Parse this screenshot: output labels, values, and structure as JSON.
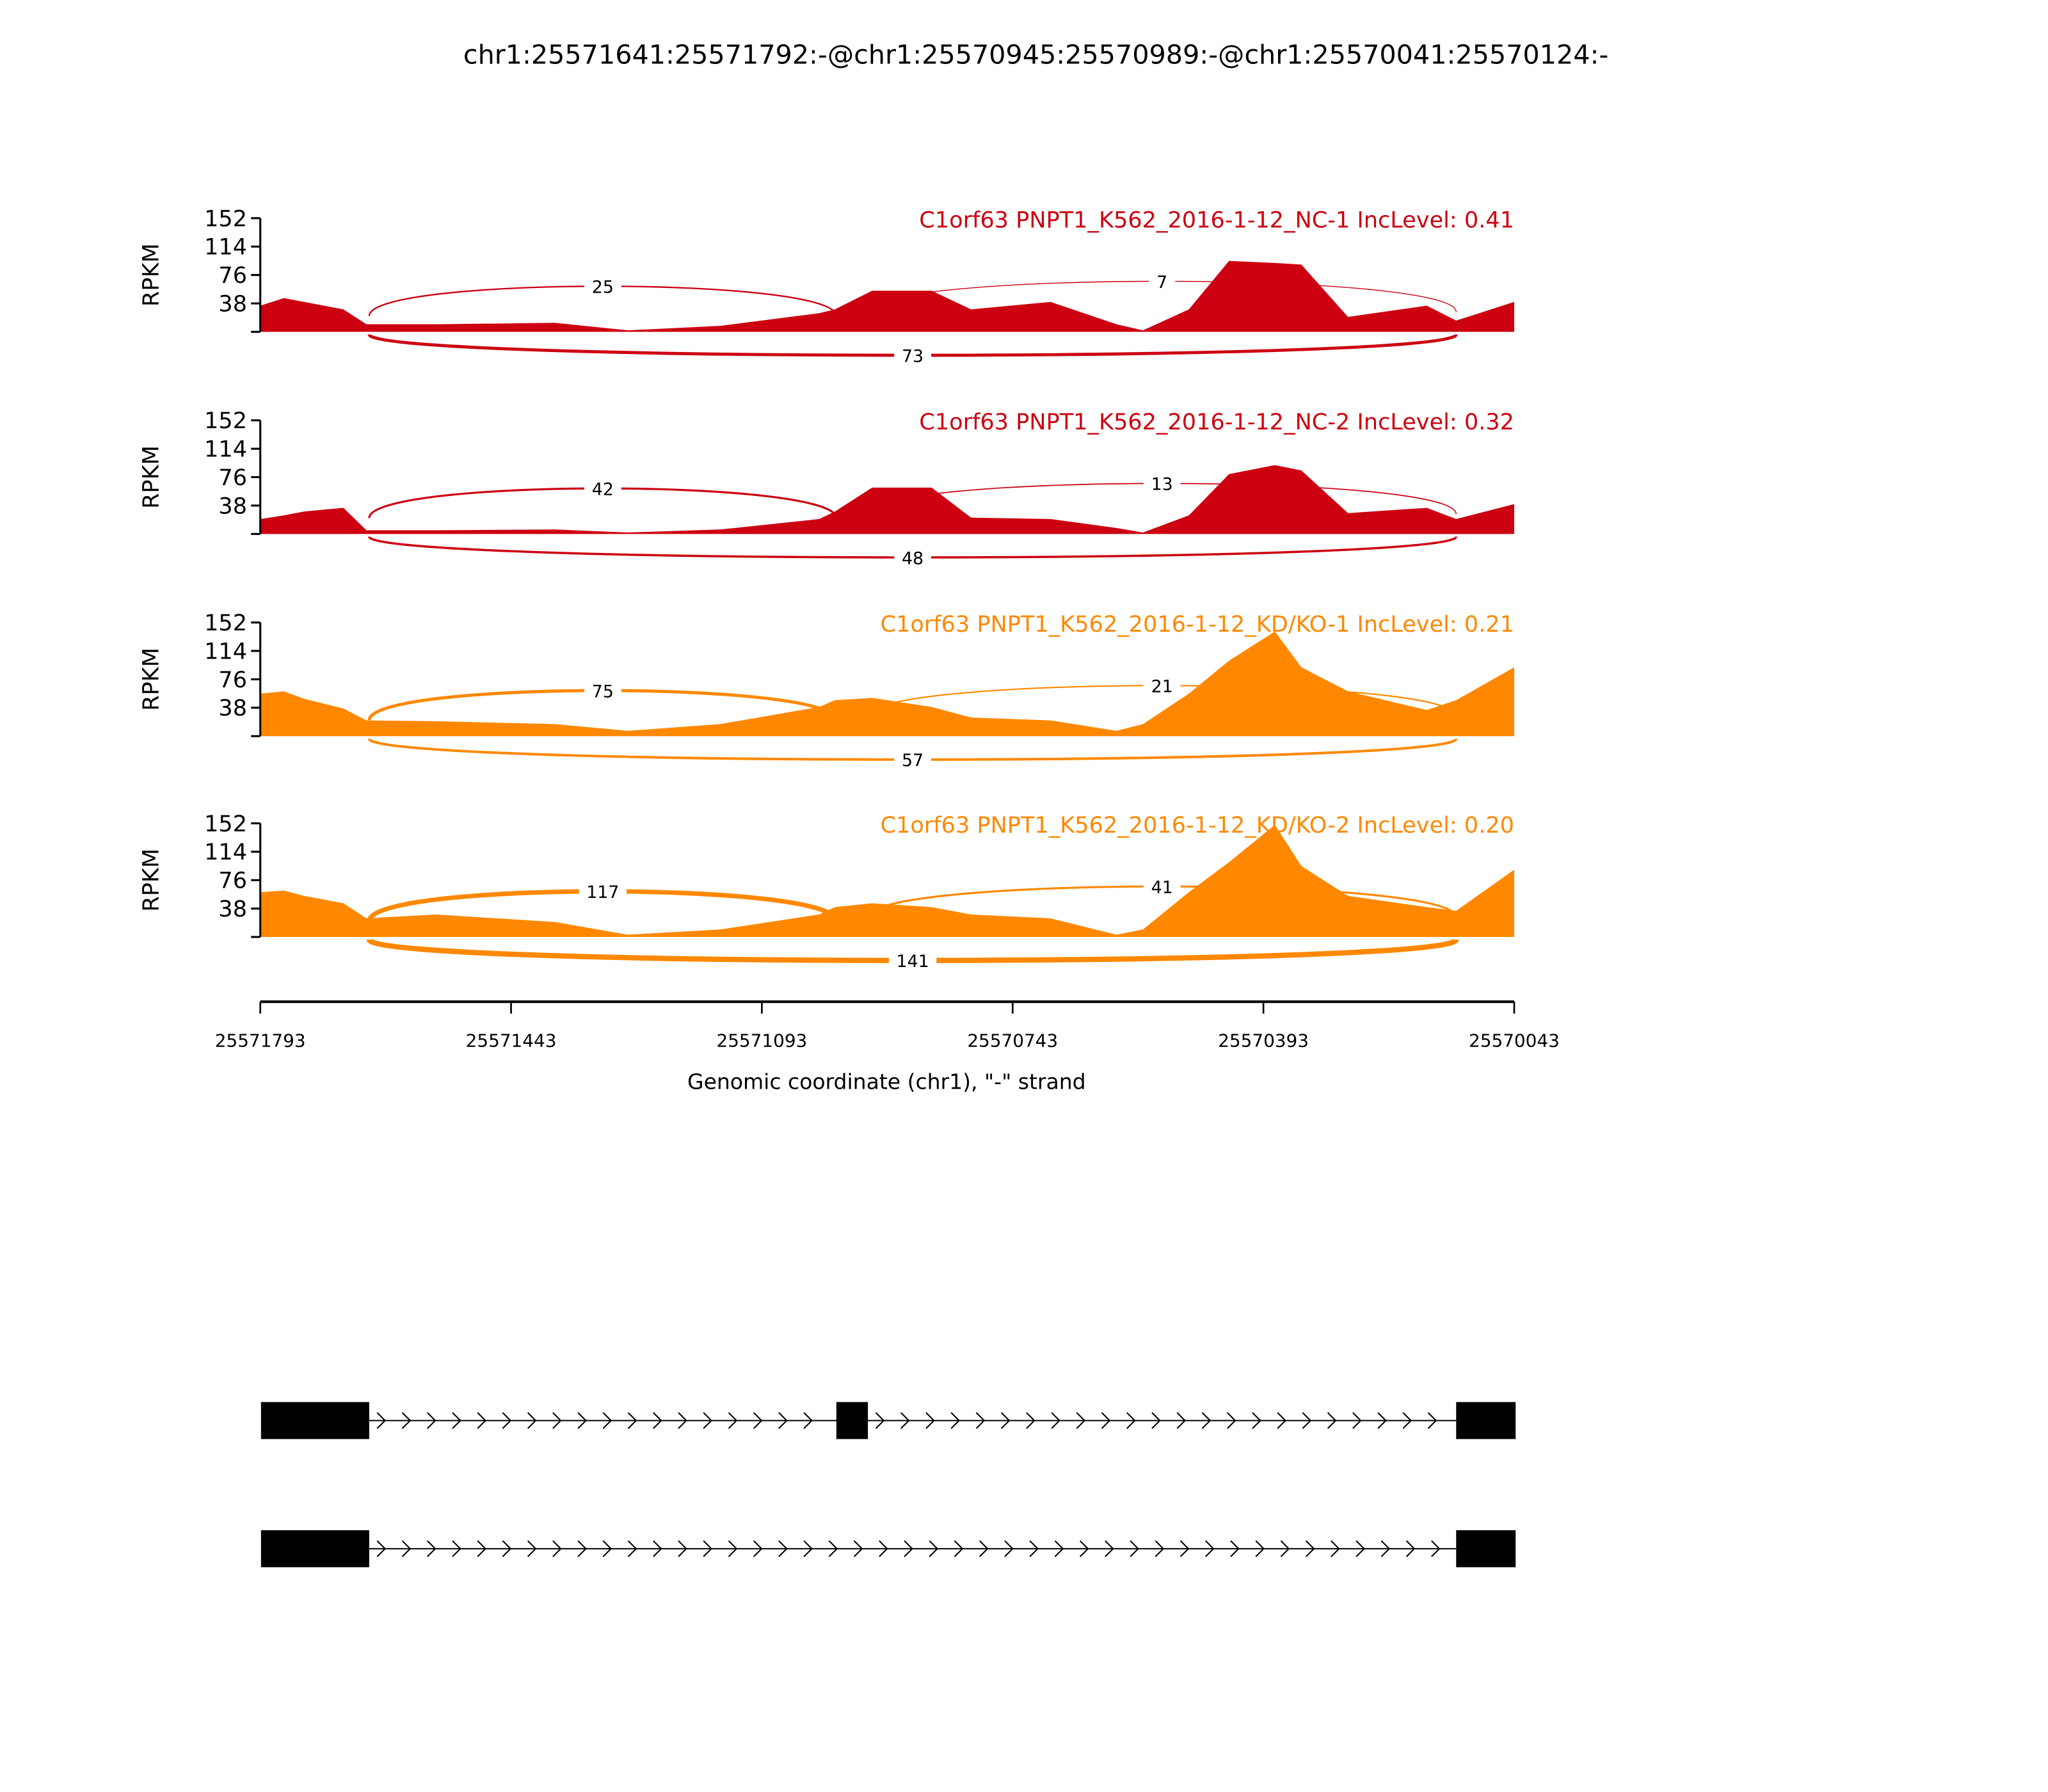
{
  "chart_data": {
    "type": "area",
    "title": "chr1:25571641:25571792:-@chr1:25570945:25570989:-@chr1:25570041:25570124:-",
    "xlabel": "Genomic coordinate (chr1), \"-\" strand",
    "ylabel": "RPKM",
    "xlim": [
      25571793,
      25570043
    ],
    "x_ticks": [
      "25571793",
      "25571443",
      "25571093",
      "25570743",
      "25570393",
      "25570043"
    ],
    "ylim": [
      0,
      152
    ],
    "y_ticks": [
      "38",
      "76",
      "114",
      "152"
    ],
    "coverage_x": [
      25571793,
      25571760,
      25571732,
      25571677,
      25571645,
      25571548,
      25571382,
      25571280,
      25571151,
      25571013,
      25570991,
      25570939,
      25570856,
      25570801,
      25570690,
      25570598,
      25570561,
      25570497,
      25570441,
      25570377,
      25570340,
      25570275,
      25570165,
      25570124,
      25570043
    ],
    "samples": [
      {
        "label": "C1orf63 PNPT1_K562_2016-1-12_NC-1 IncLevel: 0.41",
        "color": "#CC0011",
        "values": [
          35,
          45,
          40,
          30,
          10,
          10,
          12,
          2,
          8,
          25,
          30,
          55,
          55,
          30,
          40,
          10,
          2,
          30,
          95,
          92,
          90,
          20,
          35,
          15,
          40
        ],
        "junctions": [
          {
            "from": 25571641,
            "to": 25570989,
            "count": "25",
            "side": "above"
          },
          {
            "from": 25570945,
            "to": 25570124,
            "count": "7",
            "side": "above"
          },
          {
            "from": 25571641,
            "to": 25570124,
            "count": "73",
            "side": "below"
          }
        ]
      },
      {
        "label": "C1orf63 PNPT1_K562_2016-1-12_NC-2 IncLevel: 0.32",
        "color": "#CC0011",
        "values": [
          20,
          25,
          30,
          35,
          5,
          5,
          6,
          2,
          6,
          20,
          30,
          62,
          62,
          22,
          20,
          8,
          2,
          25,
          80,
          92,
          85,
          28,
          35,
          20,
          40
        ],
        "junctions": [
          {
            "from": 25571641,
            "to": 25570989,
            "count": "42",
            "side": "above"
          },
          {
            "from": 25570945,
            "to": 25570124,
            "count": "13",
            "side": "above"
          },
          {
            "from": 25571641,
            "to": 25570124,
            "count": "48",
            "side": "below"
          }
        ]
      },
      {
        "label": "C1orf63 PNPT1_K562_2016-1-12_KD/KO-1 IncLevel: 0.21",
        "color": "#FF8800",
        "values": [
          57,
          60,
          50,
          37,
          21,
          20,
          16,
          7,
          16,
          39,
          48,
          51,
          39,
          25,
          21,
          7,
          16,
          57,
          101,
          140,
          92,
          60,
          35,
          48,
          92
        ],
        "junctions": [
          {
            "from": 25571641,
            "to": 25570989,
            "count": "75",
            "side": "above"
          },
          {
            "from": 25570945,
            "to": 25570124,
            "count": "21",
            "side": "above"
          },
          {
            "from": 25571641,
            "to": 25570124,
            "count": "57",
            "side": "below"
          }
        ]
      },
      {
        "label": "C1orf63 PNPT1_K562_2016-1-12_KD/KO-2 IncLevel: 0.20",
        "color": "#FF8800",
        "values": [
          60,
          62,
          55,
          45,
          25,
          30,
          20,
          3,
          10,
          30,
          40,
          45,
          40,
          30,
          25,
          3,
          10,
          60,
          100,
          150,
          95,
          55,
          40,
          35,
          90
        ],
        "junctions": [
          {
            "from": 25571641,
            "to": 25570989,
            "count": "117",
            "side": "above"
          },
          {
            "from": 25570945,
            "to": 25570124,
            "count": "41",
            "side": "above"
          },
          {
            "from": 25571641,
            "to": 25570124,
            "count": "141",
            "side": "below"
          }
        ]
      }
    ],
    "gene_models": [
      {
        "exons": [
          [
            25571792,
            25571641
          ],
          [
            25570989,
            25570945
          ],
          [
            25570124,
            25570041
          ]
        ]
      },
      {
        "exons": [
          [
            25571792,
            25571641
          ],
          [
            25570124,
            25570041
          ]
        ]
      }
    ]
  }
}
